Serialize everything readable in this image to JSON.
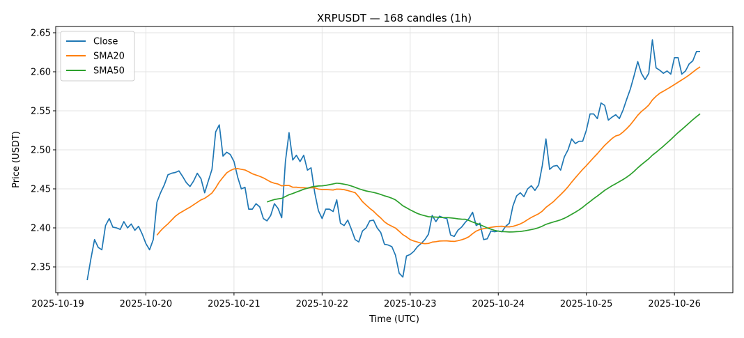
{
  "chart_data": {
    "type": "line",
    "title": "XRPUSDT — 168 candles (1h)",
    "xlabel": "Time (UTC)",
    "ylabel": "Price (USDT)",
    "start_time": "2025-10-19 08:00",
    "interval_hours": 1,
    "x_ticks": [
      "2025-10-19",
      "2025-10-20",
      "2025-10-21",
      "2025-10-22",
      "2025-10-23",
      "2025-10-24",
      "2025-10-25",
      "2025-10-26"
    ],
    "y_ticks": [
      "2.35",
      "2.40",
      "2.45",
      "2.50",
      "2.55",
      "2.60",
      "2.65"
    ],
    "ylim": [
      2.32,
      2.655
    ],
    "grid": true,
    "legend_position": "top-left",
    "series": [
      {
        "name": "Close",
        "color": "#1f77b4",
        "type": "raw"
      },
      {
        "name": "SMA20",
        "color": "#ff7f0e",
        "type": "sma",
        "window": 20
      },
      {
        "name": "SMA50",
        "color": "#2ca02c",
        "type": "sma",
        "window": 50
      }
    ],
    "close": [
      2.333,
      2.36,
      2.385,
      2.375,
      2.372,
      2.403,
      2.412,
      2.401,
      2.4,
      2.398,
      2.408,
      2.4,
      2.405,
      2.397,
      2.402,
      2.392,
      2.38,
      2.372,
      2.385,
      2.433,
      2.445,
      2.455,
      2.468,
      2.47,
      2.471,
      2.473,
      2.466,
      2.458,
      2.453,
      2.46,
      2.47,
      2.463,
      2.445,
      2.46,
      2.475,
      2.523,
      2.532,
      2.492,
      2.497,
      2.494,
      2.485,
      2.465,
      2.45,
      2.452,
      2.424,
      2.424,
      2.431,
      2.427,
      2.412,
      2.409,
      2.416,
      2.431,
      2.425,
      2.413,
      2.485,
      2.522,
      2.487,
      2.493,
      2.485,
      2.493,
      2.474,
      2.477,
      2.445,
      2.422,
      2.412,
      2.424,
      2.424,
      2.421,
      2.436,
      2.406,
      2.403,
      2.41,
      2.398,
      2.385,
      2.382,
      2.396,
      2.4,
      2.409,
      2.41,
      2.4,
      2.394,
      2.379,
      2.378,
      2.376,
      2.365,
      2.342,
      2.337,
      2.364,
      2.366,
      2.37,
      2.376,
      2.38,
      2.385,
      2.392,
      2.416,
      2.408,
      2.415,
      2.413,
      2.412,
      2.391,
      2.389,
      2.397,
      2.401,
      2.407,
      2.412,
      2.42,
      2.403,
      2.406,
      2.385,
      2.386,
      2.396,
      2.395,
      2.396,
      2.395,
      2.402,
      2.406,
      2.428,
      2.441,
      2.445,
      2.44,
      2.45,
      2.454,
      2.448,
      2.455,
      2.48,
      2.514,
      2.475,
      2.479,
      2.48,
      2.474,
      2.491,
      2.5,
      2.514,
      2.508,
      2.511,
      2.511,
      2.525,
      2.546,
      2.546,
      2.54,
      2.56,
      2.557,
      2.538,
      2.542,
      2.545,
      2.54,
      2.551,
      2.565,
      2.578,
      2.595,
      2.613,
      2.598,
      2.59,
      2.598,
      2.641,
      2.605,
      2.602,
      2.598,
      2.601,
      2.597,
      2.618,
      2.618,
      2.597,
      2.601,
      2.61,
      2.614,
      2.626,
      2.626
    ]
  }
}
